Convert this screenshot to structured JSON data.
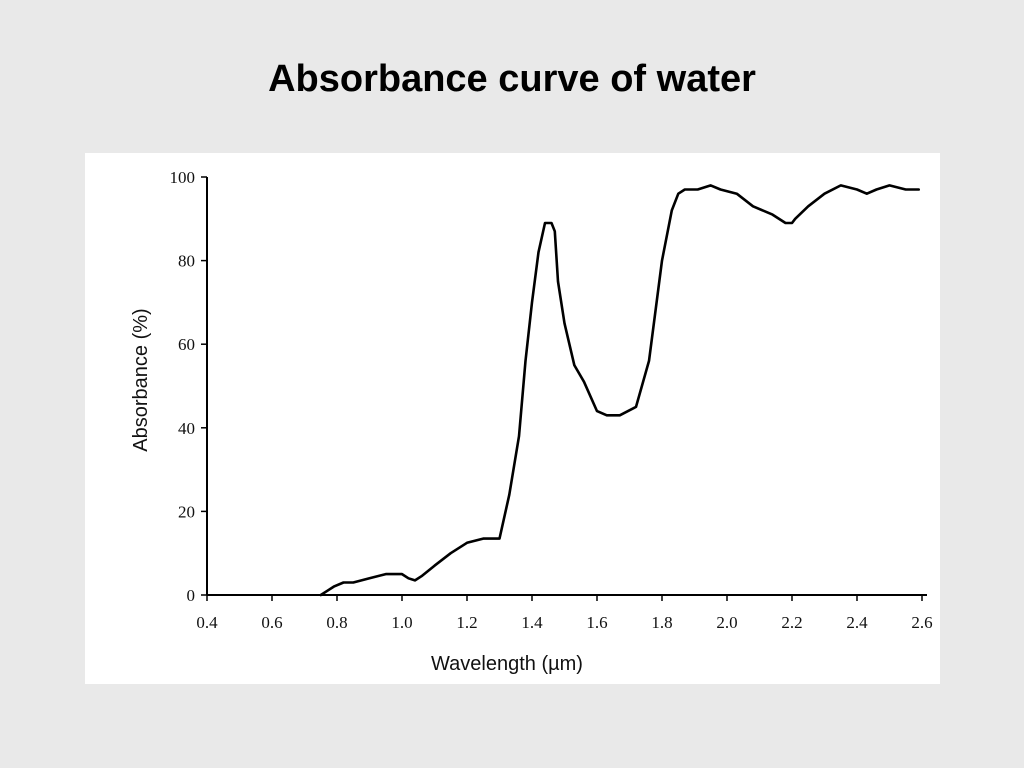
{
  "slide": {
    "title": "Absorbance curve of water"
  },
  "chart_data": {
    "type": "line",
    "title": "Absorbance curve of water",
    "xlabel": "Wavelength (µm)",
    "ylabel": "Absorbance (%)",
    "xlim": [
      0.4,
      2.6
    ],
    "ylim": [
      0,
      100
    ],
    "x_ticks": [
      0.4,
      0.6,
      0.8,
      1.0,
      1.2,
      1.4,
      1.6,
      1.8,
      2.0,
      2.2,
      2.4,
      2.6
    ],
    "x_tick_labels": [
      "0.4",
      "0.6",
      "0.8",
      "1.0",
      "1.2",
      "1.4",
      "1.6",
      "1.8",
      "2.0",
      "2.2",
      "2.4",
      "2.6"
    ],
    "y_ticks": [
      0,
      20,
      40,
      60,
      80,
      100
    ],
    "y_tick_labels": [
      "0",
      "20",
      "40",
      "60",
      "80",
      "100"
    ],
    "grid": false,
    "legend": "none",
    "series": [
      {
        "color": "#000000",
        "x": [
          0.75,
          0.77,
          0.79,
          0.82,
          0.85,
          0.9,
          0.95,
          1.0,
          1.02,
          1.04,
          1.06,
          1.1,
          1.15,
          1.2,
          1.25,
          1.28,
          1.3,
          1.33,
          1.36,
          1.38,
          1.4,
          1.42,
          1.44,
          1.46,
          1.47,
          1.48,
          1.5,
          1.53,
          1.56,
          1.6,
          1.63,
          1.67,
          1.72,
          1.76,
          1.78,
          1.8,
          1.83,
          1.85,
          1.87,
          1.89,
          1.91,
          1.95,
          1.98,
          2.03,
          2.08,
          2.14,
          2.18,
          2.2,
          2.21,
          2.25,
          2.3,
          2.35,
          2.4,
          2.43,
          2.46,
          2.5,
          2.55,
          2.59
        ],
        "y": [
          0,
          1,
          2,
          3,
          3,
          4,
          5,
          5,
          4,
          3.5,
          4.5,
          7,
          10,
          12.5,
          13.5,
          13.5,
          13.5,
          24,
          38,
          56,
          70,
          82,
          89,
          89,
          87,
          75,
          65,
          55,
          51,
          44,
          43,
          43,
          45,
          56,
          68,
          80,
          92,
          96,
          97,
          97,
          97,
          98,
          97,
          96,
          93,
          91,
          89,
          89,
          90,
          93,
          96,
          98,
          97,
          96,
          97,
          98,
          97,
          97
        ]
      }
    ]
  }
}
